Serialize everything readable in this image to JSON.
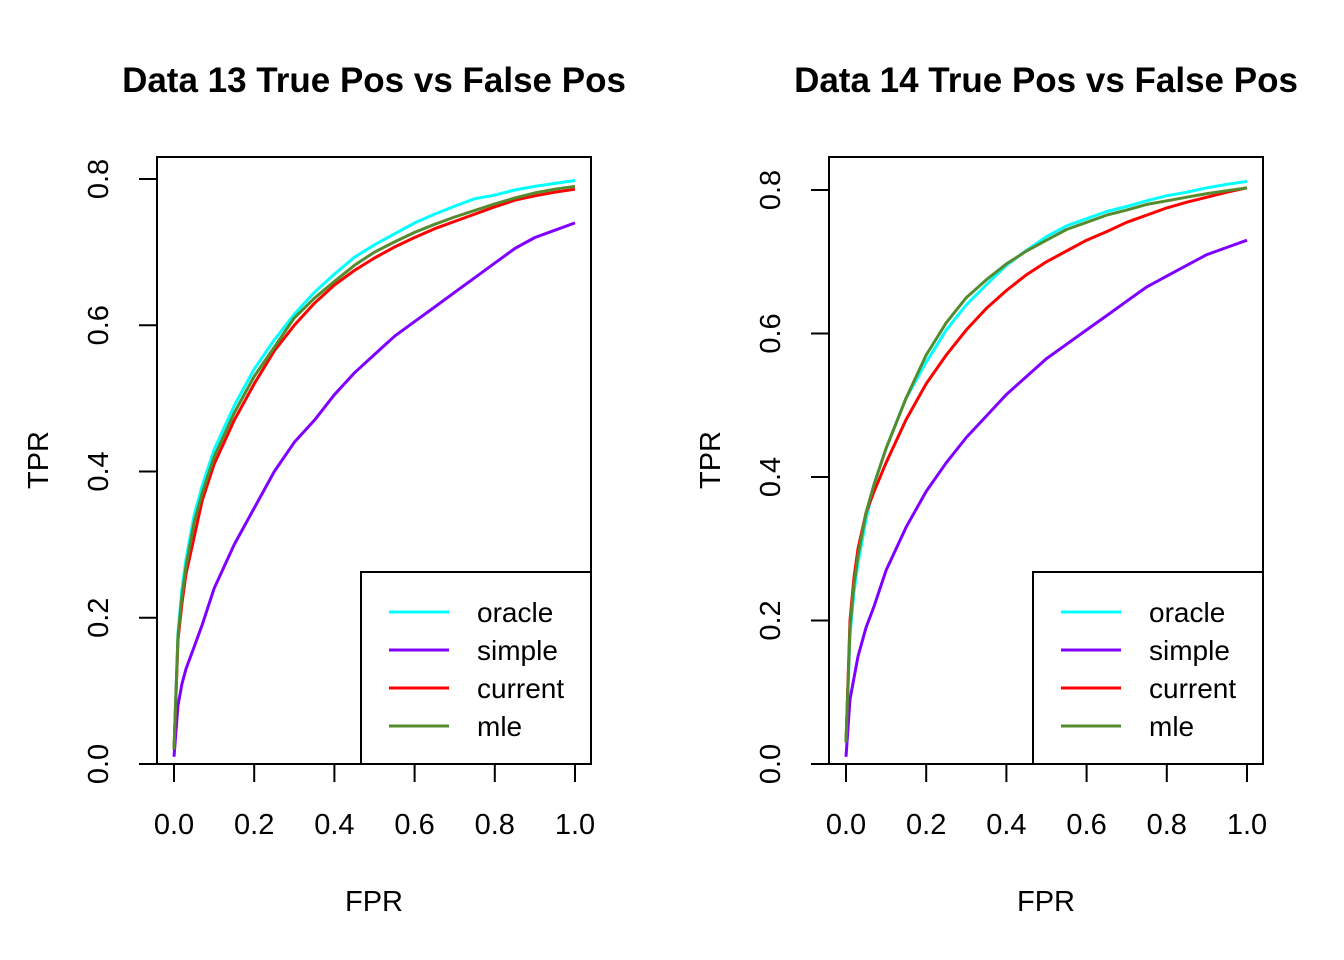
{
  "colors": {
    "oracle": "#00FFFF",
    "simple": "#8000FF",
    "current": "#FF0000",
    "mle": "#558B2F"
  },
  "chart_data": [
    {
      "type": "line",
      "title": "Data 13 True Pos vs False Pos",
      "xlabel": "FPR",
      "ylabel": "TPR",
      "xlim": [
        0,
        1
      ],
      "ylim": [
        0,
        0.8
      ],
      "xticks": [
        "0.0",
        "0.2",
        "0.4",
        "0.6",
        "0.8",
        "1.0"
      ],
      "yticks": [
        "0.0",
        "0.2",
        "0.4",
        "0.6",
        "0.8"
      ],
      "legend_position": "bottom-right",
      "legend": [
        "oracle",
        "simple",
        "current",
        "mle"
      ],
      "series": [
        {
          "name": "oracle",
          "x": [
            0,
            0.01,
            0.02,
            0.03,
            0.05,
            0.07,
            0.1,
            0.15,
            0.2,
            0.25,
            0.3,
            0.35,
            0.4,
            0.45,
            0.5,
            0.55,
            0.6,
            0.65,
            0.7,
            0.75,
            0.8,
            0.85,
            0.9,
            0.95,
            1.0
          ],
          "y": [
            0.02,
            0.18,
            0.24,
            0.28,
            0.34,
            0.38,
            0.43,
            0.49,
            0.54,
            0.58,
            0.615,
            0.645,
            0.67,
            0.693,
            0.71,
            0.725,
            0.74,
            0.752,
            0.763,
            0.773,
            0.778,
            0.785,
            0.79,
            0.794,
            0.798
          ]
        },
        {
          "name": "simple",
          "x": [
            0,
            0.01,
            0.02,
            0.03,
            0.05,
            0.07,
            0.1,
            0.15,
            0.2,
            0.25,
            0.3,
            0.35,
            0.4,
            0.45,
            0.5,
            0.55,
            0.6,
            0.65,
            0.7,
            0.75,
            0.8,
            0.85,
            0.9,
            0.95,
            1.0
          ],
          "y": [
            0.01,
            0.08,
            0.11,
            0.13,
            0.16,
            0.19,
            0.24,
            0.3,
            0.35,
            0.4,
            0.44,
            0.47,
            0.505,
            0.535,
            0.56,
            0.585,
            0.605,
            0.625,
            0.645,
            0.665,
            0.685,
            0.705,
            0.72,
            0.73,
            0.74
          ]
        },
        {
          "name": "current",
          "x": [
            0,
            0.01,
            0.02,
            0.03,
            0.05,
            0.07,
            0.1,
            0.15,
            0.2,
            0.25,
            0.3,
            0.35,
            0.4,
            0.45,
            0.5,
            0.55,
            0.6,
            0.65,
            0.7,
            0.75,
            0.8,
            0.85,
            0.9,
            0.95,
            1.0
          ],
          "y": [
            0.02,
            0.17,
            0.22,
            0.26,
            0.31,
            0.36,
            0.41,
            0.47,
            0.52,
            0.565,
            0.6,
            0.63,
            0.655,
            0.675,
            0.692,
            0.707,
            0.72,
            0.732,
            0.742,
            0.752,
            0.762,
            0.771,
            0.777,
            0.782,
            0.786
          ]
        },
        {
          "name": "mle",
          "x": [
            0,
            0.01,
            0.02,
            0.03,
            0.05,
            0.07,
            0.1,
            0.15,
            0.2,
            0.25,
            0.3,
            0.35,
            0.4,
            0.45,
            0.5,
            0.55,
            0.6,
            0.65,
            0.7,
            0.75,
            0.8,
            0.85,
            0.9,
            0.95,
            1.0
          ],
          "y": [
            0.02,
            0.175,
            0.23,
            0.27,
            0.33,
            0.37,
            0.42,
            0.48,
            0.53,
            0.57,
            0.61,
            0.637,
            0.66,
            0.682,
            0.7,
            0.714,
            0.727,
            0.738,
            0.748,
            0.757,
            0.766,
            0.774,
            0.781,
            0.786,
            0.79
          ]
        }
      ]
    },
    {
      "type": "line",
      "title": "Data 14 True Pos vs False Pos",
      "xlabel": "FPR",
      "ylabel": "TPR",
      "xlim": [
        0,
        1
      ],
      "ylim": [
        0,
        0.8
      ],
      "xticks": [
        "0.0",
        "0.2",
        "0.4",
        "0.6",
        "0.8",
        "1.0"
      ],
      "yticks": [
        "0.0",
        "0.2",
        "0.4",
        "0.6",
        "0.8"
      ],
      "legend_position": "bottom-right",
      "legend": [
        "oracle",
        "simple",
        "current",
        "mle"
      ],
      "series": [
        {
          "name": "oracle",
          "x": [
            0,
            0.01,
            0.02,
            0.03,
            0.05,
            0.07,
            0.1,
            0.15,
            0.2,
            0.25,
            0.3,
            0.35,
            0.4,
            0.45,
            0.5,
            0.55,
            0.6,
            0.65,
            0.7,
            0.75,
            0.8,
            0.85,
            0.9,
            0.95,
            1.0
          ],
          "y": [
            0.03,
            0.18,
            0.24,
            0.28,
            0.34,
            0.39,
            0.44,
            0.51,
            0.56,
            0.605,
            0.64,
            0.668,
            0.695,
            0.716,
            0.735,
            0.75,
            0.76,
            0.77,
            0.777,
            0.785,
            0.792,
            0.797,
            0.803,
            0.808,
            0.812
          ]
        },
        {
          "name": "simple",
          "x": [
            0,
            0.01,
            0.02,
            0.03,
            0.05,
            0.07,
            0.1,
            0.15,
            0.2,
            0.25,
            0.3,
            0.35,
            0.4,
            0.45,
            0.5,
            0.55,
            0.6,
            0.65,
            0.7,
            0.75,
            0.8,
            0.85,
            0.9,
            0.95,
            1.0
          ],
          "y": [
            0.01,
            0.09,
            0.12,
            0.15,
            0.19,
            0.22,
            0.27,
            0.33,
            0.38,
            0.42,
            0.455,
            0.485,
            0.515,
            0.54,
            0.565,
            0.585,
            0.605,
            0.625,
            0.645,
            0.665,
            0.68,
            0.695,
            0.71,
            0.72,
            0.73
          ]
        },
        {
          "name": "current",
          "x": [
            0,
            0.01,
            0.02,
            0.03,
            0.05,
            0.07,
            0.1,
            0.15,
            0.2,
            0.25,
            0.3,
            0.35,
            0.4,
            0.45,
            0.5,
            0.55,
            0.6,
            0.65,
            0.7,
            0.75,
            0.8,
            0.85,
            0.9,
            0.95,
            1.0
          ],
          "y": [
            0.03,
            0.2,
            0.26,
            0.3,
            0.35,
            0.38,
            0.42,
            0.48,
            0.53,
            0.57,
            0.605,
            0.635,
            0.66,
            0.682,
            0.7,
            0.715,
            0.73,
            0.742,
            0.755,
            0.765,
            0.775,
            0.783,
            0.79,
            0.797,
            0.803
          ]
        },
        {
          "name": "mle",
          "x": [
            0,
            0.01,
            0.02,
            0.03,
            0.05,
            0.07,
            0.1,
            0.15,
            0.2,
            0.25,
            0.3,
            0.35,
            0.4,
            0.45,
            0.5,
            0.55,
            0.6,
            0.65,
            0.7,
            0.75,
            0.8,
            0.85,
            0.9,
            0.95,
            1.0
          ],
          "y": [
            0.03,
            0.19,
            0.25,
            0.29,
            0.35,
            0.39,
            0.44,
            0.51,
            0.57,
            0.615,
            0.65,
            0.675,
            0.697,
            0.715,
            0.73,
            0.745,
            0.755,
            0.765,
            0.772,
            0.78,
            0.785,
            0.79,
            0.795,
            0.799,
            0.803
          ]
        }
      ]
    }
  ]
}
